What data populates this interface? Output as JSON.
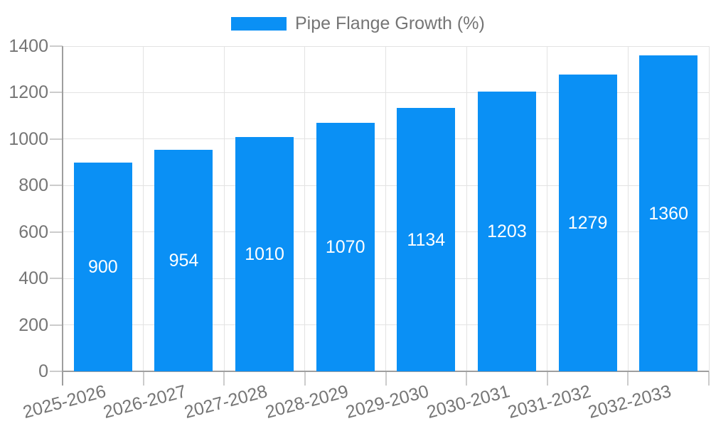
{
  "chart_data": {
    "type": "bar",
    "title": "Pipe Flange Growth (%)",
    "legend_position": "top-center",
    "xlabel": "",
    "ylabel": "",
    "categories": [
      "2025-2026",
      "2026-2027",
      "2027-2028",
      "2028-2029",
      "2029-2030",
      "2030-2031",
      "2031-2032",
      "2032-2033"
    ],
    "series": [
      {
        "name": "Pipe Flange Growth (%)",
        "values": [
          900,
          954,
          1010,
          1070,
          1134,
          1203,
          1279,
          1360
        ],
        "value_labels": [
          "900",
          "954",
          "1010",
          "1070",
          "1134",
          "1203",
          "1279",
          "1360"
        ]
      }
    ],
    "ylim": [
      0,
      1400
    ],
    "ytick_step": 200,
    "y_tick_labels": [
      "0",
      "200",
      "400",
      "600",
      "800",
      "1000",
      "1200",
      "1400"
    ],
    "grid": true,
    "x_label_rotation_deg": -15,
    "colors": {
      "bar": "#0a90f5",
      "text": "#757575",
      "grid": "#e3e3e3",
      "tick": "#cccccc",
      "axis": "#9e9e9e",
      "value_label": "#ffffff",
      "background": "#ffffff"
    }
  }
}
